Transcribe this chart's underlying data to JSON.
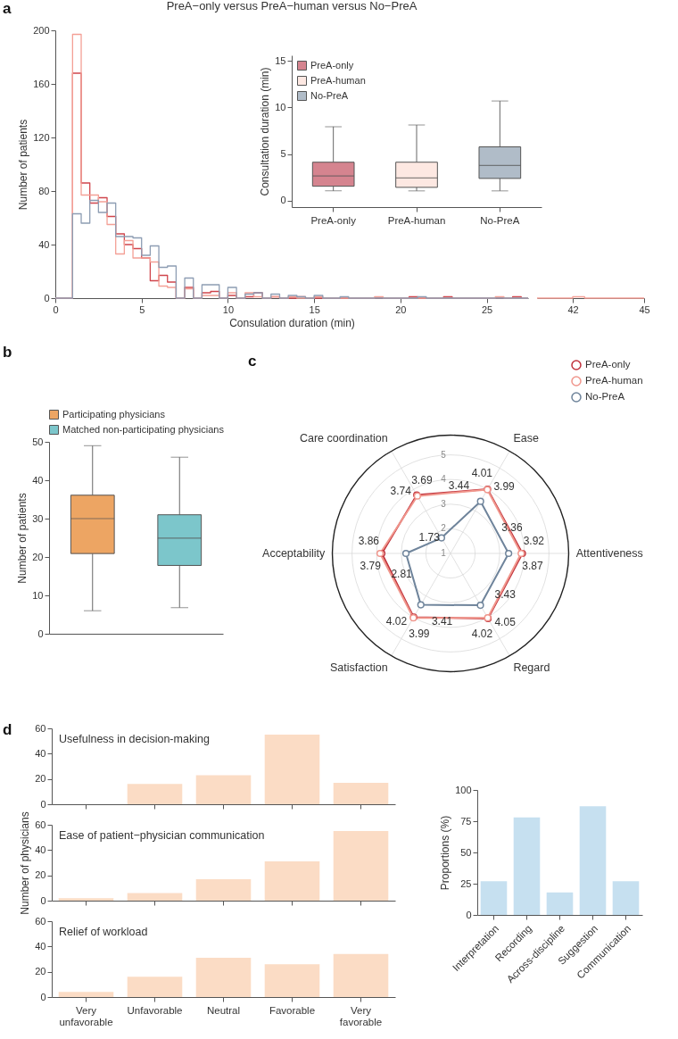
{
  "chart_data": [
    {
      "type": "histogram",
      "title": "PreA−only versus PreA−human versus No−PreA",
      "xlabel": "Consulation duration (min)",
      "ylabel": "Number of patients",
      "annotations": [
        "a"
      ],
      "bins": [
        0,
        1,
        1.5,
        2,
        2.5,
        3,
        3.5,
        4,
        4.5,
        5,
        5.5,
        6,
        6.5,
        7,
        7.5,
        8,
        8.5,
        9,
        9.5,
        10,
        10.5,
        11,
        11.5,
        12,
        12.5,
        13,
        13.5,
        14,
        14.5,
        15,
        15.5,
        16,
        16.5,
        17,
        17.5,
        18,
        18.5,
        19,
        19.5,
        20,
        20.5,
        21,
        21.5,
        22,
        22.5,
        23,
        23.5,
        24,
        24.5,
        25,
        25.5,
        26,
        26.5,
        27,
        27.4
      ],
      "xlim": [
        0,
        27.4
      ],
      "xticks": [
        0,
        5,
        10,
        15,
        20,
        25
      ],
      "ylim": [
        0,
        200
      ],
      "yticks": [
        0,
        40,
        80,
        120,
        160,
        200
      ],
      "series": [
        {
          "color": "#d0454c",
          "values": [
            0,
            168,
            86,
            71,
            75,
            61,
            48,
            40,
            37,
            30,
            13,
            17,
            12,
            0,
            8,
            0,
            4,
            5,
            0,
            2,
            0,
            1,
            4,
            0,
            1,
            0,
            0,
            1,
            0,
            0,
            0,
            0,
            0,
            0,
            0,
            0,
            0,
            0,
            0,
            0,
            1,
            0,
            0,
            0,
            1,
            0,
            0,
            0,
            0,
            0,
            0,
            0,
            1,
            0
          ]
        },
        {
          "color": "#f4a096",
          "values": [
            0,
            197,
            77,
            77,
            72,
            55,
            33,
            43,
            30,
            30,
            27,
            9,
            8,
            0,
            7,
            0,
            2,
            2,
            0,
            4,
            0,
            4,
            1,
            0,
            1,
            0,
            1,
            0,
            0,
            1,
            0,
            0,
            0,
            0,
            0,
            0,
            1,
            0,
            0,
            0,
            0,
            0,
            0,
            0,
            0,
            0,
            0,
            0,
            0,
            0,
            1,
            0,
            0,
            0
          ]
        },
        {
          "color": "#8d9db3",
          "values": [
            0,
            63,
            56,
            73,
            64,
            71,
            46,
            46,
            45,
            32,
            39,
            23,
            24,
            0,
            15,
            0,
            10,
            10,
            0,
            8,
            0,
            3,
            4,
            0,
            3,
            0,
            2,
            1,
            0,
            2,
            0,
            0,
            1,
            0,
            0,
            0,
            0,
            0,
            0,
            0,
            0,
            1,
            0,
            0,
            0,
            0,
            0,
            0,
            0,
            0,
            0,
            0,
            0,
            0
          ]
        }
      ]
    },
    {
      "type": "histogram",
      "bins": [
        40.5,
        42,
        42.5,
        45
      ],
      "xlim": [
        40.5,
        45
      ],
      "xticks": [
        42,
        45
      ],
      "ylim": [
        0,
        200
      ],
      "tick_labels": "x",
      "series": [
        {
          "color": "#f4a096",
          "values": [
            0,
            1,
            0
          ]
        }
      ]
    },
    {
      "type": "box",
      "ylabel": "Consultation duration (min)",
      "categories": [
        "PreA-only",
        "PreA-human",
        "No-PreA"
      ],
      "ylim": [
        -0.7,
        15.6
      ],
      "yticks": [
        0,
        5,
        10,
        15
      ],
      "legend": "top left",
      "series": [
        {
          "name": "PreA-only",
          "color": "#d5848f",
          "boxes": [
            {
              "low": 1.04,
              "q1": 1.54,
              "median": 2.64,
              "q3": 4.12,
              "high": 7.94
            },
            null,
            null
          ]
        },
        {
          "name": "PreA-human",
          "color": "#fde8e2",
          "boxes": [
            null,
            {
              "low": 1.04,
              "q1": 1.42,
              "median": 2.43,
              "q3": 4.12,
              "high": 8.12
            },
            null
          ]
        },
        {
          "name": "No-PreA",
          "color": "#b0bcc8",
          "boxes": [
            null,
            null,
            {
              "low": 1.04,
              "q1": 2.38,
              "median": 3.77,
              "q3": 5.77,
              "high": 10.7
            }
          ]
        }
      ]
    },
    {
      "type": "box",
      "ylabel": "Number of patients",
      "annotations": [
        "b"
      ],
      "categories": [
        null,
        null
      ],
      "ylim": [
        0,
        50
      ],
      "yticks": [
        0,
        10,
        20,
        30,
        40,
        50
      ],
      "legend": "top",
      "series": [
        {
          "name": "Participating physicians",
          "color": "#eda563",
          "boxes": [
            {
              "low": 6,
              "q1": 20.9,
              "median": 30,
              "q3": 36.1,
              "high": 49
            },
            null
          ]
        },
        {
          "name": "Matched non-participating physicians",
          "color": "#7cc6cb",
          "boxes": [
            null,
            {
              "low": 6.8,
              "q1": 17.8,
              "median": 24.9,
              "q3": 31,
              "high": 46
            }
          ]
        }
      ]
    },
    {
      "type": "radar",
      "annotations": [
        "c"
      ],
      "categories": [
        "Ease",
        "Attentiveness",
        "Regard",
        "Satisfaction",
        "Acceptability",
        "Care coordination"
      ],
      "ylim": [
        1,
        5.8
      ],
      "yticks": [
        1,
        2,
        3,
        4,
        5
      ],
      "grid": true,
      "legend": "top right",
      "marker": "circle",
      "data_labels": true,
      "series": [
        {
          "name": "PreA-only",
          "color": "#c0313b",
          "values": [
            4.01,
            3.92,
            4.05,
            3.99,
            3.79,
            3.74
          ]
        },
        {
          "name": "PreA-human",
          "color": "#f0968c",
          "values": [
            3.99,
            3.87,
            4.02,
            4.02,
            3.86,
            3.69
          ]
        },
        {
          "name": "No-PreA",
          "color": "#6f849b",
          "values": [
            3.44,
            3.36,
            3.43,
            3.41,
            2.81,
            1.73
          ]
        }
      ]
    },
    {
      "type": "bar",
      "title": "Usefulness in decision-making",
      "annotations": [
        "d"
      ],
      "categories": [
        null,
        null,
        null,
        null,
        null
      ],
      "values": [
        0,
        16,
        23,
        55,
        17
      ],
      "color": "#fbdcc5",
      "ylim": [
        0,
        60
      ],
      "yticks": [
        0,
        20,
        40,
        60
      ],
      "tick_labels": "y"
    },
    {
      "type": "bar",
      "title": "Ease of patient−physician communication",
      "ylabel": "Number of physicians",
      "categories": [
        null,
        null,
        null,
        null,
        null
      ],
      "values": [
        2,
        6,
        17,
        31,
        55
      ],
      "color": "#fbdcc5",
      "ylim": [
        0,
        60
      ],
      "yticks": [
        0,
        20,
        40,
        60
      ],
      "tick_labels": "y"
    },
    {
      "type": "bar",
      "title": "Relief of workload",
      "categories": [
        "Very unfavorable",
        "Unfavorable",
        "Neutral",
        "Favorable",
        "Very favorable"
      ],
      "values": [
        4,
        16,
        31,
        26,
        34
      ],
      "color": "#fbdcc5",
      "ylim": [
        0,
        60
      ],
      "yticks": [
        0,
        20,
        40,
        60
      ]
    },
    {
      "type": "bar",
      "ylabel": "Proportions (%)",
      "categories": [
        "Interpretation",
        "Recording",
        "Across-discipline",
        "Suggestion",
        "Communication"
      ],
      "values": [
        27,
        78,
        18,
        87,
        27
      ],
      "color": "#c6e0f0",
      "ylim": [
        0,
        100
      ],
      "yticks": [
        0,
        25,
        50,
        75,
        100
      ]
    }
  ]
}
